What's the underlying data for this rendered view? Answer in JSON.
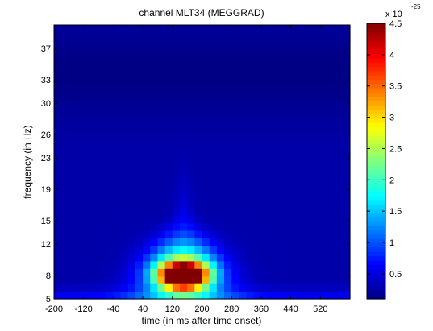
{
  "chart_data": {
    "type": "heatmap",
    "title": "channel MLT34 (MEGGRAD)",
    "xlabel": "time (in ms after time onset)",
    "ylabel": "frequency (in Hz)",
    "xlim": [
      -200,
      600
    ],
    "ylim": [
      5,
      40
    ],
    "x_ticks": [
      -200,
      -120,
      -40,
      40,
      120,
      200,
      280,
      360,
      440,
      520
    ],
    "y_ticks": [
      5,
      8,
      12,
      15,
      19,
      23,
      26,
      30,
      33,
      37
    ],
    "colorbar": {
      "colormap": "jet",
      "clim": [
        0.1,
        4.5
      ],
      "ticks": [
        0.5,
        1,
        1.5,
        2,
        2.5,
        3,
        3.5,
        4,
        4.5
      ],
      "exponent_label": "x 10",
      "exponent": "-25"
    },
    "peak": {
      "time": 150,
      "frequency": 8,
      "value": 4.5
    },
    "grid": false
  }
}
